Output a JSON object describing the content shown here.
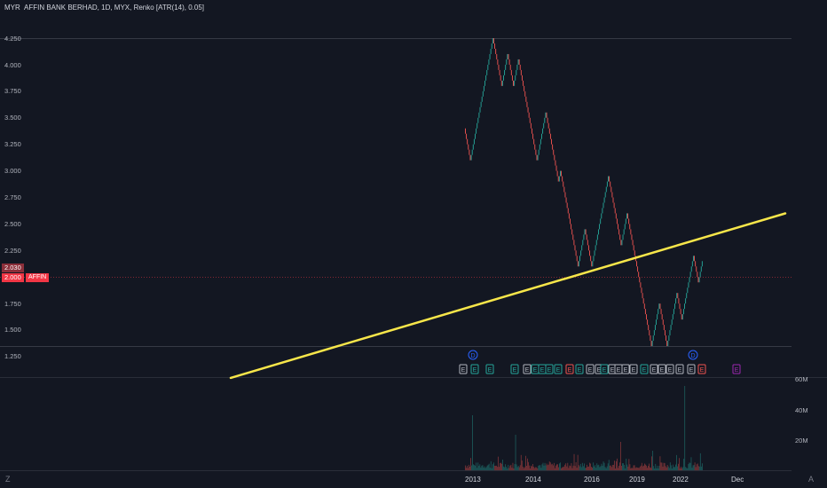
{
  "header": {
    "currency": "MYR",
    "title": "AFFIN BANK BERHAD, 1D, MYX, Renko [ATR(14), 0.05]"
  },
  "price_axis": {
    "ticks": [
      "4.250",
      "4.000",
      "3.750",
      "3.500",
      "3.250",
      "3.000",
      "2.750",
      "2.500",
      "2.250",
      "1.750",
      "1.500",
      "1.250"
    ]
  },
  "badges": {
    "prev_price": "2.030",
    "last_price": "2.000",
    "symbol": "AFFIN"
  },
  "volume_axis": {
    "ticks": [
      "60M",
      "40M",
      "20M"
    ]
  },
  "time_axis": {
    "ticks": [
      "2013",
      "2014",
      "2016",
      "2019",
      "2022",
      "Dec"
    ]
  },
  "markers": {
    "dividend": "D",
    "earnings": "E"
  },
  "corner_icons": [
    "Z",
    "A"
  ],
  "colors": {
    "background": "#131722",
    "up": "#26a69a",
    "down": "#ef5350",
    "trendline": "#f7e64a",
    "last_price": "#f23645",
    "dividend": "#2962ff",
    "upcoming_earnings": "#9c27b0"
  },
  "chart_data": {
    "type": "renko",
    "interval": "1D",
    "box_size_method": "ATR(14)",
    "ylim": [
      1.25,
      4.3
    ],
    "last_price": 2.0,
    "approx_path": [
      {
        "x": "2013",
        "y": 3.4
      },
      {
        "y": 3.1
      },
      {
        "y": 3.3
      },
      {
        "y": 4.25
      },
      {
        "y": 3.8
      },
      {
        "y": 4.1
      },
      {
        "y": 3.8
      },
      {
        "y": 4.05
      },
      {
        "y": 3.1
      },
      {
        "y": 3.55
      },
      {
        "y": 2.9
      },
      {
        "y": 3.0
      },
      {
        "x": "2016",
        "y": 2.1
      },
      {
        "y": 2.45
      },
      {
        "y": 2.1
      },
      {
        "y": 2.95
      },
      {
        "y": 2.3
      },
      {
        "y": 2.6
      },
      {
        "y": 2.2
      },
      {
        "x": "2019",
        "y": 1.35
      },
      {
        "y": 1.75
      },
      {
        "y": 1.35
      },
      {
        "y": 1.85
      },
      {
        "y": 1.6
      },
      {
        "x": "2022",
        "y": 2.2
      },
      {
        "y": 1.95
      },
      {
        "y": 2.15
      }
    ],
    "trendline": [
      {
        "x": "2009",
        "y": 1.05
      },
      {
        "x": "Dec",
        "y": 2.6
      }
    ]
  }
}
